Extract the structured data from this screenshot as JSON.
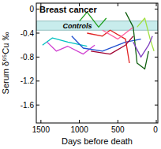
{
  "chart_data": {
    "type": "line",
    "title": "Breast cancer",
    "x_label": "Days before death",
    "y_label": "Serum δ⁶⁵Cu ‰",
    "xlim": [
      1560,
      -20
    ],
    "xticks": [
      1500,
      1000,
      500,
      0
    ],
    "ylim": [
      -1.9,
      0.1
    ],
    "yticks": [
      -1.6,
      -1.2,
      -0.8,
      -0.4,
      0
    ],
    "band": {
      "label": "Controls",
      "range": [
        -0.35,
        -0.2
      ],
      "color": "#c8ecec"
    },
    "series": [
      {
        "color": "#00c0c0",
        "x": [
          1480,
          1350,
          1150,
          900
        ],
        "values": [
          -0.6,
          -0.48,
          -0.55,
          -0.62
        ]
      },
      {
        "color": "#d040d0",
        "x": [
          1420,
          1300,
          1150,
          950,
          800
        ],
        "values": [
          -0.55,
          -0.7,
          -0.62,
          -0.75,
          -0.6
        ]
      },
      {
        "color": "#2050d0",
        "x": [
          1100,
          950,
          700,
          400,
          200
        ],
        "values": [
          -0.45,
          -0.65,
          -0.7,
          -0.55,
          -0.5
        ]
      },
      {
        "color": "#20a020",
        "x": [
          1000,
          900,
          750,
          650
        ],
        "values": [
          -0.2,
          -0.05,
          -0.3,
          -0.15
        ]
      },
      {
        "color": "#e02020",
        "x": [
          900,
          700,
          600,
          400,
          350
        ],
        "values": [
          -0.4,
          -0.45,
          -0.35,
          -0.5,
          -0.9
        ]
      },
      {
        "color": "#a00030",
        "x": [
          850,
          600,
          400,
          300
        ],
        "values": [
          -0.7,
          -0.75,
          -0.6,
          -0.45
        ]
      },
      {
        "color": "#ff60a0",
        "x": [
          700,
          500,
          400,
          300
        ],
        "values": [
          -0.35,
          -0.5,
          -0.4,
          -0.3
        ]
      },
      {
        "color": "#106010",
        "x": [
          400,
          300,
          250,
          150,
          100
        ],
        "values": [
          -0.05,
          -0.3,
          -0.9,
          -1.0,
          -0.7
        ]
      },
      {
        "color": "#a0e040",
        "x": [
          250,
          150,
          80,
          30
        ],
        "values": [
          -0.3,
          -0.15,
          -0.5,
          -0.7
        ]
      },
      {
        "color": "#8040c0",
        "x": [
          300,
          200,
          100,
          50
        ],
        "values": [
          -0.55,
          -0.8,
          -0.6,
          -0.45
        ]
      }
    ]
  }
}
